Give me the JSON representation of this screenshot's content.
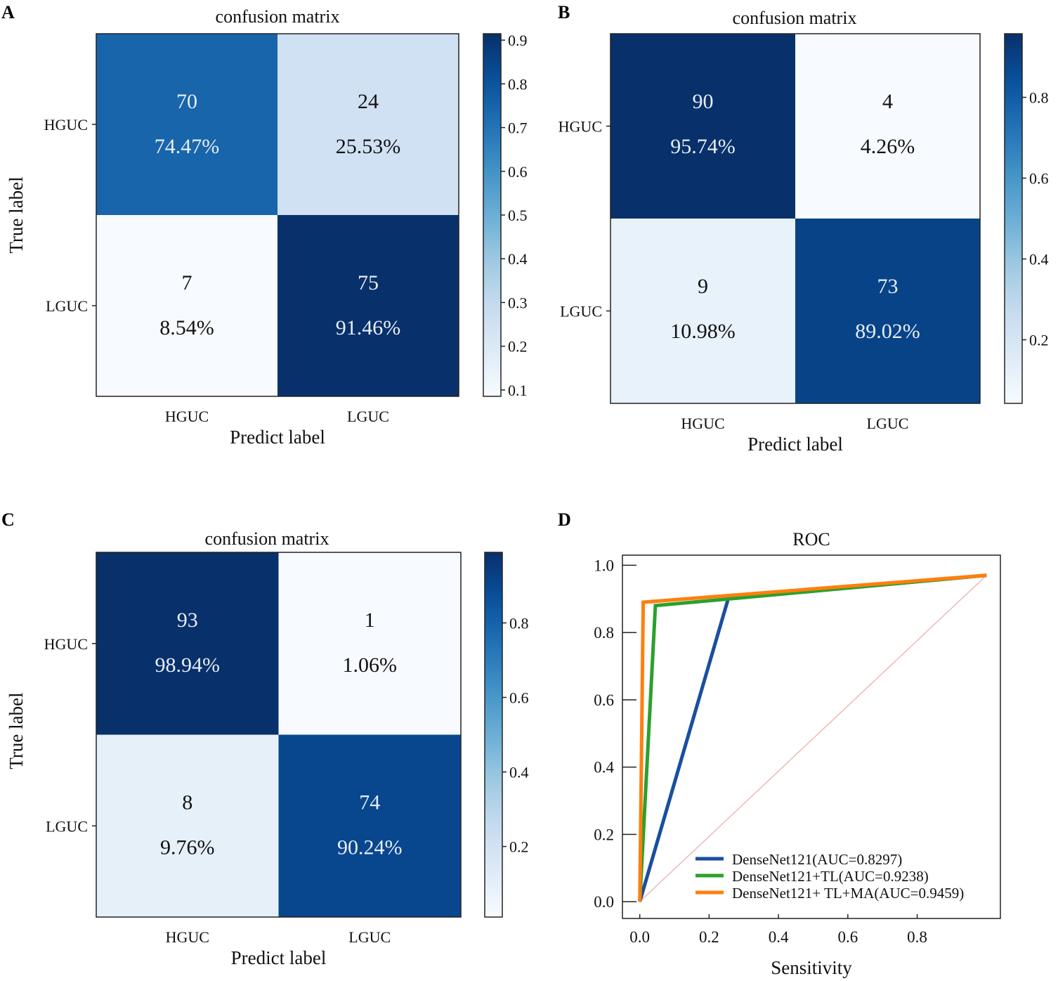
{
  "panels": {
    "A": {
      "letter": "A"
    },
    "B": {
      "letter": "B"
    },
    "C": {
      "letter": "C"
    },
    "D": {
      "letter": "D"
    }
  },
  "colors": {
    "cmap": [
      "#f7fbff",
      "#deebf7",
      "#c6dbef",
      "#9ecae1",
      "#6baed6",
      "#4292c6",
      "#2171b5",
      "#08519c",
      "#08306b"
    ],
    "roc_blue": "#1a4ea0",
    "roc_green": "#2ca02c",
    "roc_orange": "#ff7f0e",
    "diagonal": "#f0b8b8"
  },
  "chart_data": [
    {
      "panel": "A",
      "type": "heatmap",
      "title": "confusion matrix",
      "xlabel": "Predict label",
      "ylabel": "True label",
      "row_labels": [
        "HGUC",
        "LGUC"
      ],
      "col_labels": [
        "HGUC",
        "LGUC"
      ],
      "counts": [
        [
          70,
          24
        ],
        [
          7,
          75
        ]
      ],
      "percent_labels": [
        [
          "74.47%",
          "25.53%"
        ],
        [
          "8.54%",
          "91.46%"
        ]
      ],
      "values": [
        [
          0.7447,
          0.2553
        ],
        [
          0.0854,
          0.9146
        ]
      ],
      "colorbar": {
        "min": 0.0854,
        "max": 0.9146,
        "ticks": [
          0.1,
          0.2,
          0.3,
          0.4,
          0.5,
          0.6,
          0.7,
          0.8,
          0.9
        ],
        "tick_labels": [
          "0.1",
          "0.2",
          "0.3",
          "0.4",
          "0.5",
          "0.6",
          "0.7",
          "0.8",
          "0.9"
        ]
      }
    },
    {
      "panel": "B",
      "type": "heatmap",
      "title": "confusion matrix",
      "xlabel": "Predict label",
      "ylabel": "",
      "row_labels": [
        "HGUC",
        "LGUC"
      ],
      "col_labels": [
        "HGUC",
        "LGUC"
      ],
      "counts": [
        [
          90,
          4
        ],
        [
          9,
          73
        ]
      ],
      "percent_labels": [
        [
          "95.74%",
          "4.26%"
        ],
        [
          "10.98%",
          "89.02%"
        ]
      ],
      "values": [
        [
          0.9574,
          0.0426
        ],
        [
          0.1098,
          0.8902
        ]
      ],
      "colorbar": {
        "min": 0.0426,
        "max": 0.9574,
        "ticks": [
          0.2,
          0.4,
          0.6,
          0.8
        ],
        "tick_labels": [
          "0.2",
          "0.4",
          "0.6",
          "0.8"
        ]
      }
    },
    {
      "panel": "C",
      "type": "heatmap",
      "title": "confusion matrix",
      "xlabel": "Predict label",
      "ylabel": "True label",
      "row_labels": [
        "HGUC",
        "LGUC"
      ],
      "col_labels": [
        "HGUC",
        "LGUC"
      ],
      "counts": [
        [
          93,
          1
        ],
        [
          8,
          74
        ]
      ],
      "percent_labels": [
        [
          "98.94%",
          "1.06%"
        ],
        [
          "9.76%",
          "90.24%"
        ]
      ],
      "values": [
        [
          0.9894,
          0.0106
        ],
        [
          0.0976,
          0.9024
        ]
      ],
      "colorbar": {
        "min": 0.0106,
        "max": 0.9894,
        "ticks": [
          0.2,
          0.4,
          0.6,
          0.8
        ],
        "tick_labels": [
          "0.2",
          "0.4",
          "0.6",
          "0.8"
        ]
      }
    },
    {
      "panel": "D",
      "type": "line",
      "title": "ROC",
      "xlabel": "Sensitivity",
      "ylabel": "",
      "xlim": [
        -0.05,
        1.04
      ],
      "ylim": [
        -0.05,
        1.03
      ],
      "x_ticks": [
        0.0,
        0.2,
        0.4,
        0.6,
        0.8
      ],
      "x_tick_labels": [
        "0.0",
        "0.2",
        "0.4",
        "0.6",
        "0.8"
      ],
      "y_ticks": [
        0.0,
        0.2,
        0.4,
        0.6,
        0.8,
        1.0
      ],
      "y_tick_labels": [
        "0.0",
        "0.2",
        "0.4",
        "0.6",
        "0.8",
        "1.0"
      ],
      "legend_position": "lower-right",
      "series": [
        {
          "name": "DenseNet121(AUC=0.8297)",
          "color": "#1a4ea0",
          "x": [
            0.0,
            0.255,
            1.0
          ],
          "y": [
            0.0,
            0.9,
            0.97
          ]
        },
        {
          "name": "DenseNet121+TL(AUC=0.9238)",
          "color": "#2ca02c",
          "x": [
            0.0,
            0.045,
            1.0
          ],
          "y": [
            0.0,
            0.88,
            0.97
          ]
        },
        {
          "name": "DenseNet121+ TL+MA(AUC=0.9459)",
          "color": "#ff7f0e",
          "x": [
            0.0,
            0.01,
            1.0
          ],
          "y": [
            0.0,
            0.89,
            0.97
          ]
        }
      ],
      "diagonal": {
        "x": [
          0.0,
          1.0
        ],
        "y": [
          0.0,
          0.97
        ]
      }
    }
  ]
}
